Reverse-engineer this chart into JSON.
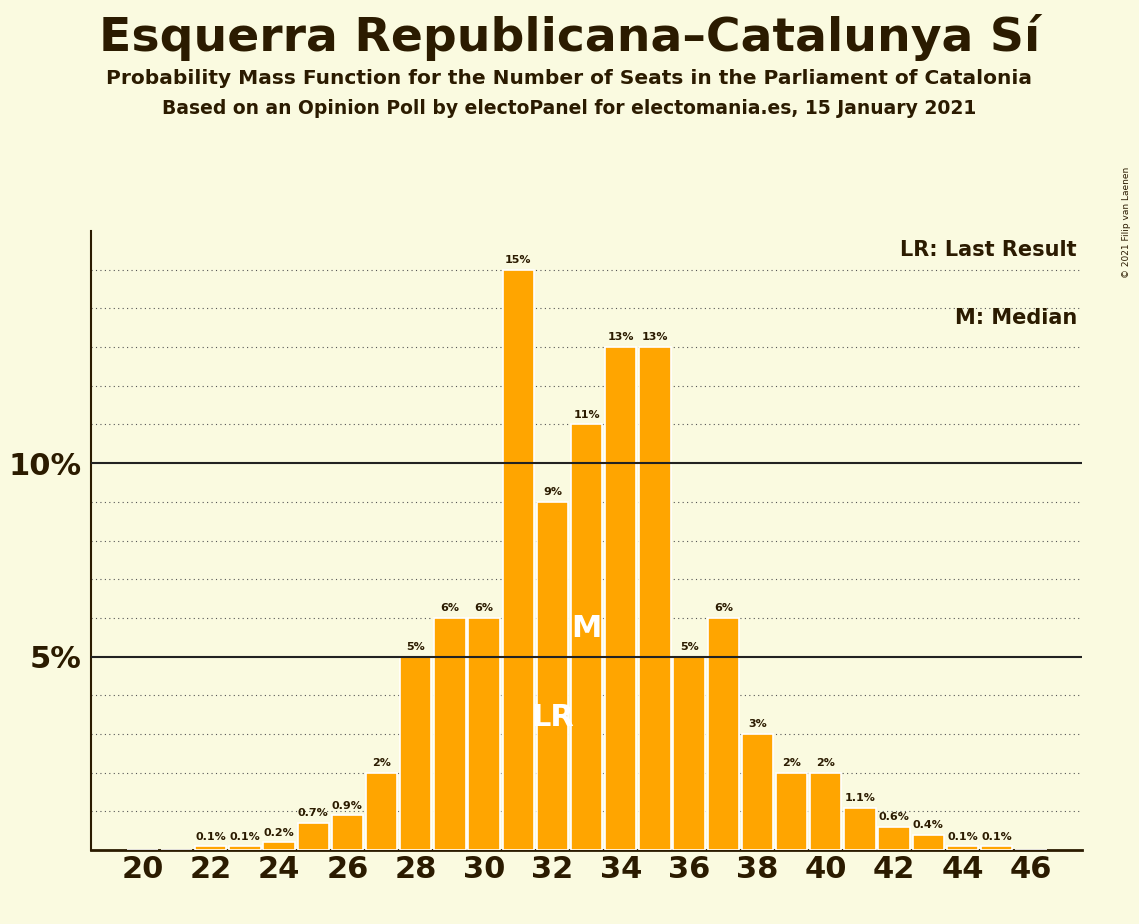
{
  "title": "Esquerra Republicana–Catalunya Sí",
  "subtitle1": "Probability Mass Function for the Number of Seats in the Parliament of Catalonia",
  "subtitle2": "Based on an Opinion Poll by electoPanel for electomania.es, 15 January 2021",
  "copyright": "© 2021 Filip van Laenen",
  "legend_lr": "LR: Last Result",
  "legend_m": "M: Median",
  "seats": [
    20,
    21,
    22,
    23,
    24,
    25,
    26,
    27,
    28,
    29,
    30,
    31,
    32,
    33,
    34,
    35,
    36,
    37,
    38,
    39,
    40,
    41,
    42,
    43,
    44,
    45,
    46
  ],
  "probabilities": [
    0.0,
    0.0,
    0.1,
    0.1,
    0.2,
    0.7,
    0.9,
    2.0,
    5.0,
    6.0,
    6.0,
    15.0,
    9.0,
    11.0,
    13.0,
    13.0,
    5.0,
    6.0,
    3.0,
    2.0,
    2.0,
    1.1,
    0.6,
    0.4,
    0.1,
    0.1,
    0.0
  ],
  "bar_color": "#FFA500",
  "background_color": "#FAFAE0",
  "text_color": "#2B1B00",
  "lr_seat": 32,
  "median_seat": 33,
  "ylim_max": 16,
  "solid_lines": [
    5,
    10
  ],
  "dotted_lines": [
    1,
    2,
    3,
    4,
    6,
    7,
    8,
    9,
    11,
    12,
    13,
    14,
    15
  ]
}
